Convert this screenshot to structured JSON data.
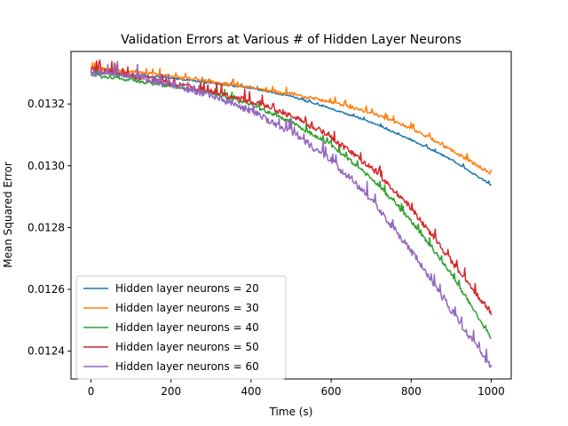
{
  "chart_data": {
    "type": "line",
    "title": "Validation Errors at Various # of Hidden Layer Neurons",
    "xlabel": "Time (s)",
    "ylabel": "Mean Squared Error",
    "xlim": [
      -50,
      1050
    ],
    "ylim": [
      0.01231,
      0.01337
    ],
    "xticks": [
      0,
      200,
      400,
      600,
      800,
      1000
    ],
    "xtick_labels": [
      "0",
      "200",
      "400",
      "600",
      "800",
      "1000"
    ],
    "yticks": [
      0.0124,
      0.0126,
      0.0128,
      0.013,
      0.0132
    ],
    "ytick_labels": [
      "0.0124",
      "0.0126",
      "0.0128",
      "0.0130",
      "0.0132"
    ],
    "grid": false,
    "legend_position": "lower left",
    "series": [
      {
        "name": "Hidden layer neurons = 20",
        "color": "#1f77b4",
        "noise": 5e-06,
        "x": [
          0,
          100,
          200,
          300,
          400,
          500,
          600,
          700,
          800,
          900,
          1000
        ],
        "y": [
          0.013302,
          0.013292,
          0.013283,
          0.013267,
          0.01325,
          0.013224,
          0.013184,
          0.01314,
          0.013083,
          0.01302,
          0.012937
        ]
      },
      {
        "name": "Hidden layer neurons = 30",
        "color": "#ff7f0e",
        "noise": 1e-05,
        "x": [
          0,
          100,
          200,
          300,
          400,
          500,
          600,
          700,
          800,
          900,
          1000
        ],
        "y": [
          0.013316,
          0.013303,
          0.013289,
          0.01327,
          0.01325,
          0.01323,
          0.013205,
          0.01317,
          0.01312,
          0.01305,
          0.012972
        ]
      },
      {
        "name": "Hidden layer neurons = 40",
        "color": "#2ca02c",
        "noise": 1.2e-05,
        "x": [
          0,
          100,
          200,
          300,
          400,
          500,
          600,
          700,
          800,
          900,
          1000
        ],
        "y": [
          0.013292,
          0.013275,
          0.013256,
          0.013234,
          0.013195,
          0.01314,
          0.013065,
          0.01296,
          0.01282,
          0.01265,
          0.01244
        ]
      },
      {
        "name": "Hidden layer neurons = 50",
        "color": "#d62728",
        "noise": 1.8e-05,
        "x": [
          0,
          100,
          200,
          300,
          400,
          500,
          600,
          700,
          800,
          900,
          1000
        ],
        "y": [
          0.01331,
          0.01329,
          0.013265,
          0.013238,
          0.013205,
          0.01316,
          0.01309,
          0.01299,
          0.01286,
          0.01269,
          0.01252
        ]
      },
      {
        "name": "Hidden layer neurons = 60",
        "color": "#9467bd",
        "noise": 2.2e-05,
        "x": [
          0,
          100,
          200,
          300,
          400,
          500,
          600,
          700,
          800,
          900,
          1000
        ],
        "y": [
          0.0133,
          0.013285,
          0.01326,
          0.013225,
          0.013175,
          0.013105,
          0.013015,
          0.01289,
          0.01272,
          0.01253,
          0.012345
        ]
      }
    ]
  }
}
